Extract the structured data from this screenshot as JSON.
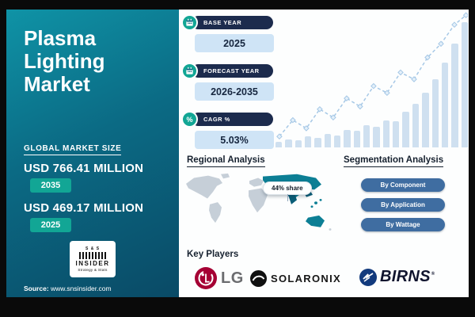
{
  "left_panel": {
    "title": "Plasma Lighting Market",
    "market_size_label": "GLOBAL MARKET SIZE",
    "market_value_2035": "USD 766.41 MILLION",
    "year_badge_2035": "2035",
    "market_value_2025": "USD 469.17 MILLION",
    "year_badge_2025": "2025",
    "logo": {
      "top": "S & S",
      "name": "INSIDER",
      "tagline": "Strategy & Stats"
    },
    "source_label": "Source:",
    "source_url": "www.snsinsider.com"
  },
  "stats": [
    {
      "label": "BASE YEAR",
      "value": "2025",
      "icon": "calendar-icon"
    },
    {
      "label": "FORECAST YEAR",
      "value": "2026-2035",
      "icon": "calendar-icon"
    },
    {
      "label": "CAGR %",
      "value": "5.03%",
      "icon": "percent-icon"
    }
  ],
  "icons": {
    "percent_glyph": "%"
  },
  "regional": {
    "heading": "Regional Analysis",
    "share_callout": "44% share"
  },
  "segmentation": {
    "heading": "Segmentation Analysis",
    "items": [
      "By Component",
      "By Application",
      "By Wattage"
    ]
  },
  "key_players": {
    "heading": "Key Players",
    "players": [
      {
        "name": "LG"
      },
      {
        "name": "SOLARONIX"
      },
      {
        "name": "BIRNS",
        "reg": "®"
      }
    ]
  },
  "colors": {
    "teal_gradient_start": "#0f93a6",
    "teal_gradient_end": "#0a4a66",
    "badge_teal": "#12a695",
    "navy_pill": "#1c2b4d",
    "value_box_blue": "#cfe4f6",
    "heading_navy": "#16212f",
    "segment_pill_blue": "#3f6da1",
    "bar_blue": "#cfe0f0",
    "line_blue": "#a6c8e6",
    "map_gray": "#c6cfd8",
    "map_teal": "#0c7f95",
    "lg_red": "#a50034",
    "birns_navy": "#123a7d"
  },
  "chart_data": {
    "type": "bar",
    "title": "Plasma Lighting Market",
    "key_metrics": {
      "market_size_2025_usd_million": 469.17,
      "market_size_2035_usd_million": 766.41,
      "cagr_percent": 5.03,
      "base_year": 2025,
      "forecast_period": "2026-2035",
      "leading_region_share_percent": 44
    },
    "background_trend": {
      "note": "decorative rising bar chart with dotted line overlay, no axes",
      "ylim": [
        0,
        100
      ],
      "bar_values": [
        4,
        6,
        5,
        8,
        7,
        10,
        9,
        13,
        12,
        16,
        15,
        20,
        19,
        26,
        32,
        40,
        50,
        62,
        76,
        92
      ],
      "line_points": [
        [
          0.02,
          0.08
        ],
        [
          0.09,
          0.2
        ],
        [
          0.16,
          0.14
        ],
        [
          0.23,
          0.28
        ],
        [
          0.3,
          0.22
        ],
        [
          0.37,
          0.36
        ],
        [
          0.44,
          0.3
        ],
        [
          0.51,
          0.45
        ],
        [
          0.58,
          0.4
        ],
        [
          0.65,
          0.55
        ],
        [
          0.72,
          0.5
        ],
        [
          0.79,
          0.66
        ],
        [
          0.86,
          0.76
        ],
        [
          0.93,
          0.9
        ],
        [
          0.99,
          0.97
        ]
      ]
    }
  }
}
